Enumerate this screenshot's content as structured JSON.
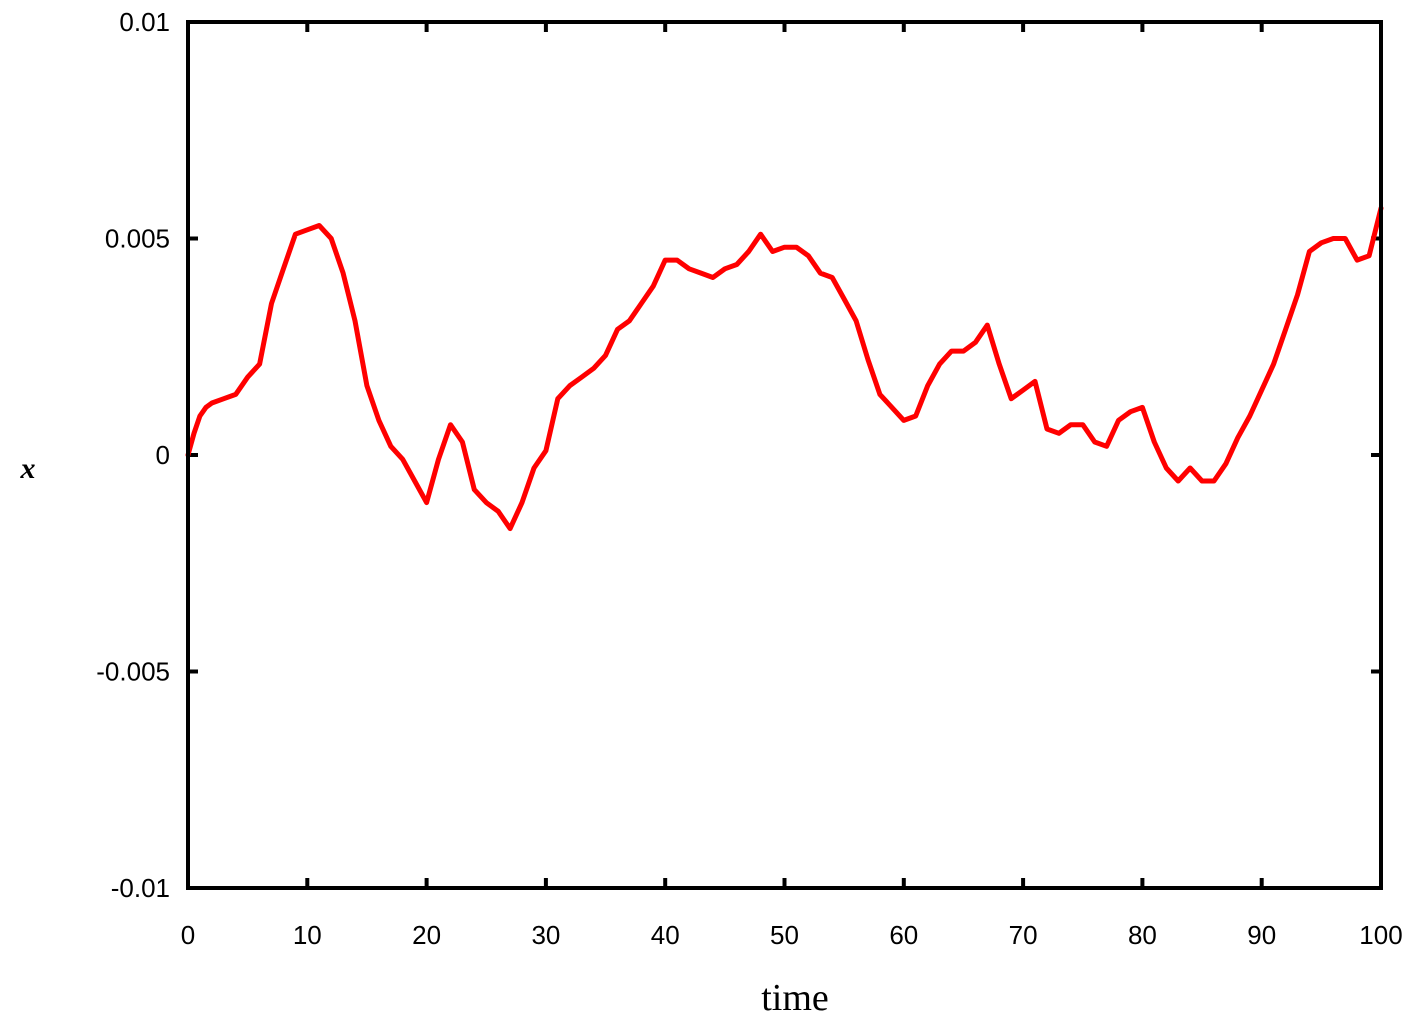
{
  "chart_data": {
    "type": "line",
    "title": "",
    "xlabel": "time",
    "ylabel": "x",
    "xlim": [
      0,
      100
    ],
    "ylim": [
      -0.01,
      0.01
    ],
    "grid": false,
    "legend": "none",
    "x_ticks": [
      0,
      10,
      20,
      30,
      40,
      50,
      60,
      70,
      80,
      90,
      100
    ],
    "x_tick_labels": [
      "0",
      "10",
      "20",
      "30",
      "40",
      "50",
      "60",
      "70",
      "80",
      "90",
      "100"
    ],
    "y_ticks": [
      -0.01,
      -0.005,
      0,
      0.005,
      0.01
    ],
    "y_tick_labels": [
      "-0.01",
      "-0.005",
      "0",
      "0.005",
      "0.01"
    ],
    "series": [
      {
        "color": "#ff0000",
        "x": [
          0,
          0.5,
          1,
          1.5,
          2,
          3,
          4,
          5,
          6,
          7,
          8,
          9,
          10,
          11,
          12,
          13,
          14,
          15,
          16,
          17,
          18,
          19,
          20,
          21,
          22,
          23,
          24,
          25,
          26,
          27,
          28,
          29,
          30,
          31,
          32,
          33,
          34,
          35,
          36,
          37,
          38,
          39,
          40,
          41,
          42,
          43,
          44,
          45,
          46,
          47,
          48,
          49,
          50,
          51,
          52,
          53,
          54,
          55,
          56,
          57,
          58,
          59,
          60,
          61,
          62,
          63,
          64,
          65,
          66,
          67,
          68,
          69,
          70,
          71,
          72,
          73,
          74,
          75,
          76,
          77,
          78,
          79,
          80,
          81,
          82,
          83,
          84,
          85,
          86,
          87,
          88,
          89,
          90,
          91,
          92,
          93,
          94,
          95,
          96,
          97,
          98,
          99,
          100
        ],
        "y": [
          0,
          0.0005,
          0.0009,
          0.0011,
          0.0012,
          0.0013,
          0.0014,
          0.0018,
          0.0021,
          0.0035,
          0.0043,
          0.0051,
          0.0052,
          0.0053,
          0.005,
          0.0042,
          0.0031,
          0.0016,
          0.0008,
          0.0002,
          -0.0001,
          -0.0006,
          -0.0011,
          -0.0001,
          0.0007,
          0.0003,
          -0.0008,
          -0.0011,
          -0.0013,
          -0.0017,
          -0.0011,
          -0.0003,
          0.0001,
          0.0013,
          0.0016,
          0.0018,
          0.002,
          0.0023,
          0.0029,
          0.0031,
          0.0035,
          0.0039,
          0.0045,
          0.0045,
          0.0043,
          0.0042,
          0.0041,
          0.0043,
          0.0044,
          0.0047,
          0.0051,
          0.0047,
          0.0048,
          0.0048,
          0.0046,
          0.0042,
          0.0041,
          0.0036,
          0.0031,
          0.0022,
          0.0014,
          0.0011,
          0.0008,
          0.0009,
          0.0016,
          0.0021,
          0.0024,
          0.0024,
          0.0026,
          0.003,
          0.0021,
          0.0013,
          0.0015,
          0.0017,
          0.0006,
          0.0005,
          0.0007,
          0.0007,
          0.0003,
          0.0002,
          0.0008,
          0.001,
          0.0011,
          0.0003,
          -0.0003,
          -0.0006,
          -0.0003,
          -0.0006,
          -0.0006,
          -0.0002,
          0.0004,
          0.0009,
          0.0015,
          0.0021,
          0.0029,
          0.0037,
          0.0047,
          0.0049,
          0.005,
          0.005,
          0.0045,
          0.0046,
          0.0057
        ]
      }
    ]
  }
}
